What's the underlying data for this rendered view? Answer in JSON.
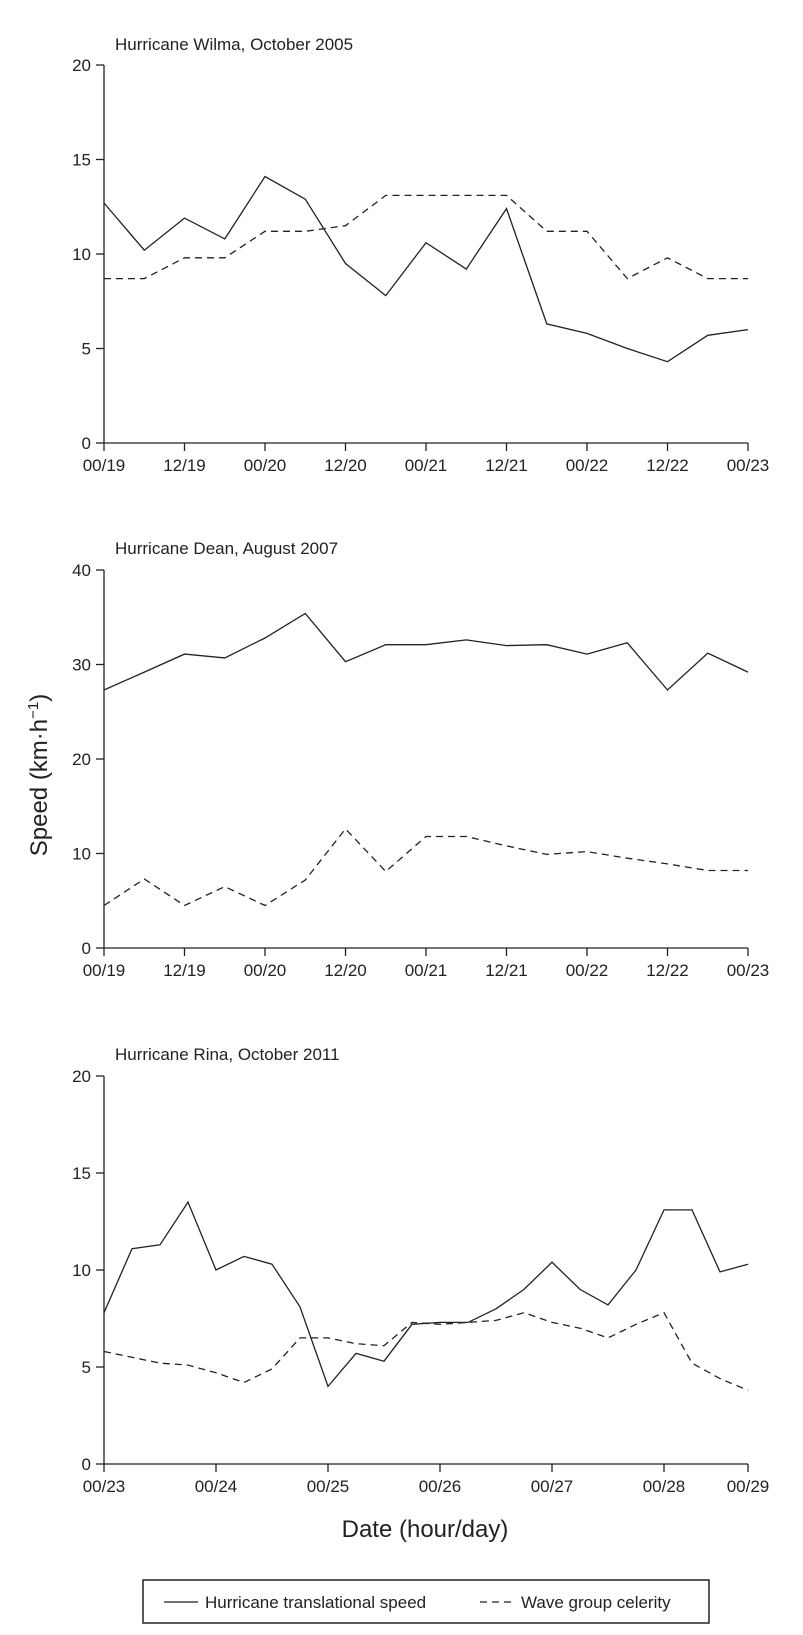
{
  "ylabel": "Speed (km·h",
  "ylabel_sup": "−1",
  "ylabel_close": ")",
  "xlabel": "Date (hour/day)",
  "legend": {
    "solid": "Hurricane translational speed",
    "dashed": "Wave group celerity"
  },
  "colors": {
    "line": "#222222",
    "background": "#ffffff"
  },
  "chart_data": [
    {
      "type": "line",
      "title": "Hurricane Wilma, October 2005",
      "ylim": [
        0,
        20
      ],
      "yticks": [
        0,
        5,
        10,
        15,
        20
      ],
      "xlim": [
        0,
        16
      ],
      "xticks": [
        0,
        2,
        4,
        6,
        8,
        10,
        12,
        14,
        16
      ],
      "xticklabels": [
        "00/19",
        "12/19",
        "00/20",
        "12/20",
        "00/21",
        "12/21",
        "00/22",
        "12/22",
        "00/23"
      ],
      "series": [
        {
          "name": "Hurricane translational speed",
          "style": "solid",
          "x": [
            0,
            1,
            2,
            3,
            4,
            5,
            6,
            7,
            8,
            9,
            10,
            11,
            12,
            13,
            14,
            15,
            16
          ],
          "values": [
            12.7,
            10.2,
            11.9,
            10.8,
            14.1,
            12.9,
            9.5,
            7.8,
            10.6,
            9.2,
            12.4,
            6.3,
            5.8,
            5.0,
            4.3,
            5.7,
            6.0
          ]
        },
        {
          "name": "Wave group celerity",
          "style": "dashed",
          "x": [
            0,
            1,
            2,
            3,
            4,
            5,
            6,
            7,
            8,
            9,
            10,
            11,
            12,
            13,
            14,
            15,
            16
          ],
          "values": [
            8.7,
            8.7,
            9.8,
            9.8,
            11.2,
            11.2,
            11.5,
            13.1,
            13.1,
            13.1,
            13.1,
            11.2,
            11.2,
            8.7,
            9.8,
            8.7,
            8.7
          ]
        }
      ]
    },
    {
      "type": "line",
      "title": "Hurricane Dean, August 2007",
      "ylim": [
        0,
        40
      ],
      "yticks": [
        0,
        10,
        20,
        30,
        40
      ],
      "xlim": [
        0,
        16
      ],
      "xticks": [
        0,
        2,
        4,
        6,
        8,
        10,
        12,
        14,
        16
      ],
      "xticklabels": [
        "00/19",
        "12/19",
        "00/20",
        "12/20",
        "00/21",
        "12/21",
        "00/22",
        "12/22",
        "00/23"
      ],
      "series": [
        {
          "name": "Hurricane translational speed",
          "style": "solid",
          "x": [
            0,
            1,
            2,
            3,
            4,
            5,
            6,
            7,
            8,
            9,
            10,
            11,
            12,
            13,
            14,
            15,
            16
          ],
          "values": [
            27.3,
            29.2,
            31.1,
            30.7,
            32.8,
            35.4,
            30.3,
            32.1,
            32.1,
            32.6,
            32.0,
            32.1,
            31.1,
            32.3,
            27.3,
            31.2,
            29.2
          ]
        },
        {
          "name": "Wave group celerity",
          "style": "dashed",
          "x": [
            0,
            1,
            2,
            3,
            4,
            5,
            6,
            7,
            8,
            9,
            10,
            11,
            12,
            13,
            14,
            15,
            16
          ],
          "values": [
            4.5,
            7.3,
            4.5,
            6.5,
            4.5,
            7.2,
            12.6,
            8.1,
            11.8,
            11.8,
            10.8,
            9.9,
            10.2,
            9.5,
            8.9,
            8.2,
            8.2
          ]
        }
      ]
    },
    {
      "type": "line",
      "title": "Hurricane Rina, October 2011",
      "ylim": [
        0,
        20
      ],
      "yticks": [
        0,
        5,
        10,
        15,
        20
      ],
      "xlim": [
        0,
        138
      ],
      "xticks": [
        0,
        24,
        48,
        72,
        96,
        120,
        138
      ],
      "xticklabels": [
        "00/23",
        "00/24",
        "00/25",
        "00/26",
        "00/27",
        "00/28",
        "00/29"
      ],
      "series": [
        {
          "name": "Hurricane translational speed",
          "style": "solid",
          "x": [
            0,
            6,
            12,
            18,
            24,
            30,
            36,
            42,
            48,
            54,
            60,
            66,
            72,
            78,
            84,
            90,
            96,
            102,
            108,
            114,
            120,
            126,
            132,
            138
          ],
          "values": [
            7.8,
            11.1,
            11.3,
            13.5,
            10.0,
            10.7,
            10.3,
            8.1,
            4.0,
            5.7,
            5.3,
            7.2,
            7.3,
            7.3,
            8.0,
            9.0,
            10.4,
            9.0,
            8.2,
            10.0,
            13.1,
            13.1,
            9.9,
            10.3
          ]
        },
        {
          "name": "Wave group celerity",
          "style": "dashed",
          "x": [
            0,
            6,
            12,
            18,
            24,
            30,
            36,
            42,
            48,
            54,
            60,
            66,
            72,
            78,
            84,
            90,
            96,
            102,
            108,
            114,
            120,
            126,
            132,
            138
          ],
          "values": [
            5.8,
            5.5,
            5.2,
            5.1,
            4.7,
            4.2,
            4.9,
            6.5,
            6.5,
            6.2,
            6.1,
            7.3,
            7.2,
            7.3,
            7.4,
            7.8,
            7.3,
            7.0,
            6.5,
            7.2,
            7.8,
            5.2,
            4.4,
            3.8
          ]
        }
      ]
    }
  ]
}
